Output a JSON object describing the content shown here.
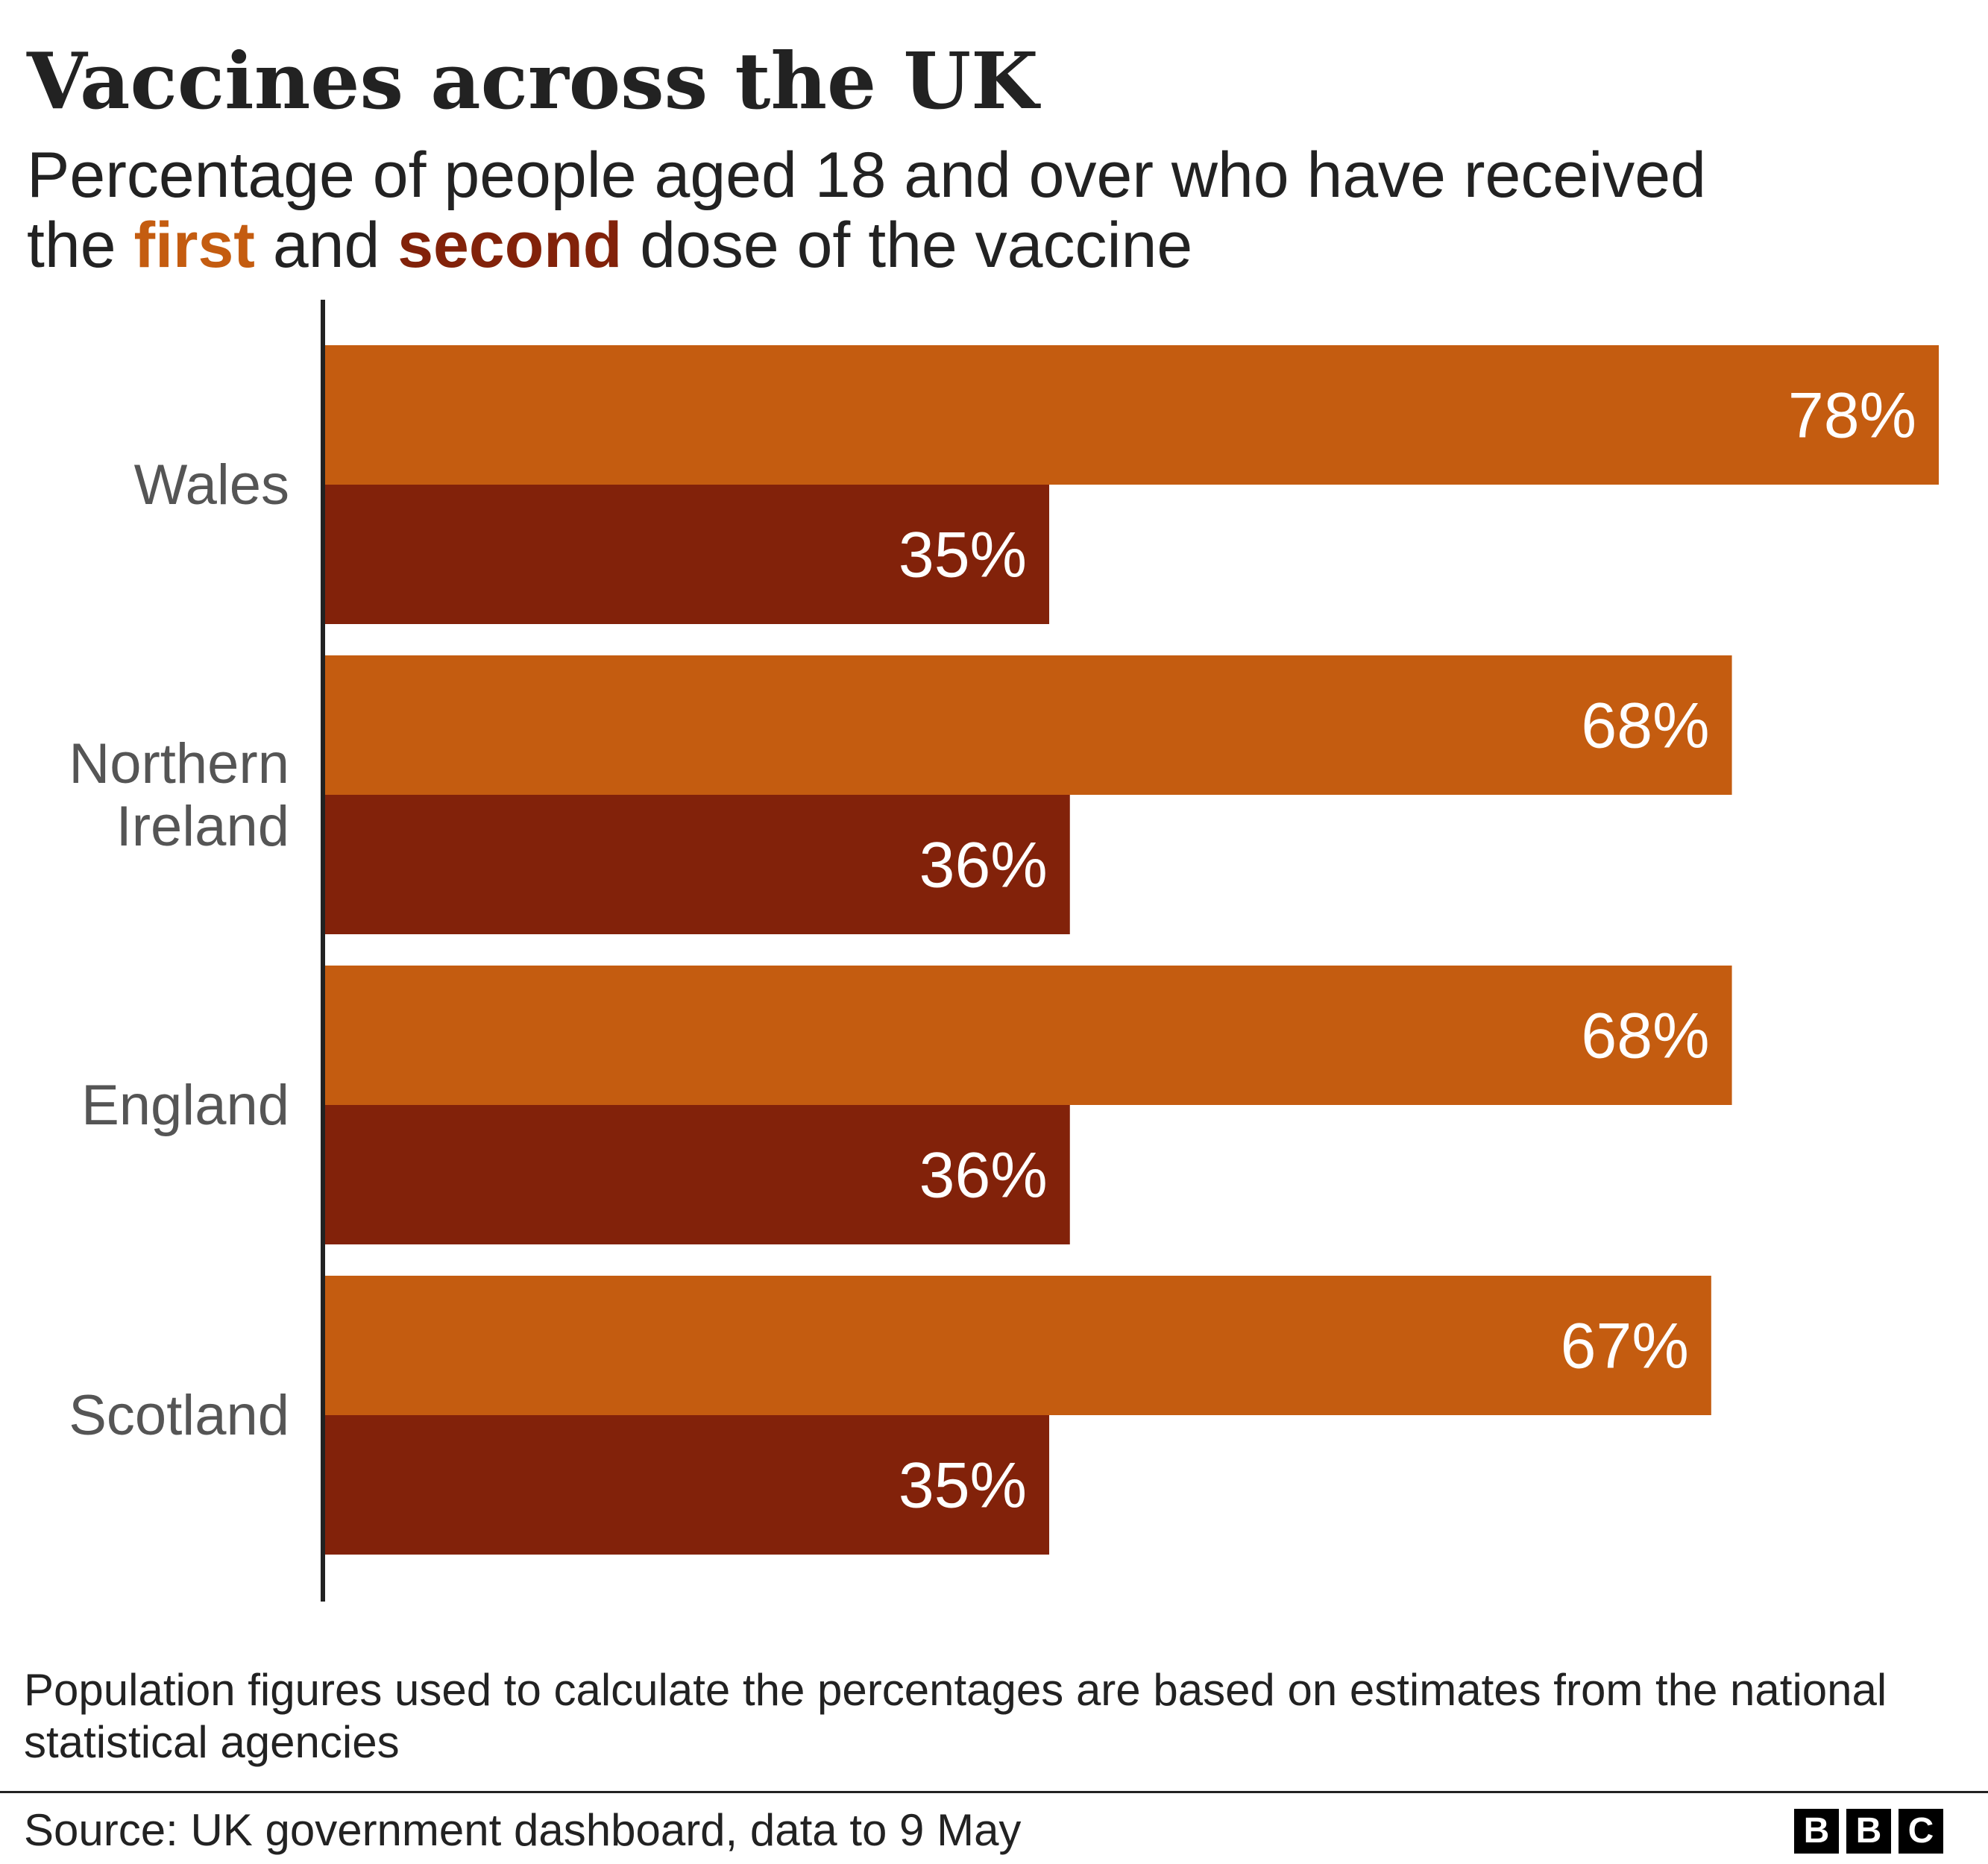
{
  "title": "Vaccines across the UK",
  "subtitle": {
    "line1": "Percentage of people aged 18 and over who have received",
    "pre": "the ",
    "first": "first",
    "mid": " and ",
    "second": "second",
    "post": " dose of the vaccine"
  },
  "colors": {
    "first": "#c45c10",
    "second": "#82220a",
    "axis": "#222222",
    "category_label": "#555555",
    "value_label": "#ffffff"
  },
  "chart_data": {
    "type": "bar",
    "orientation": "horizontal",
    "categories": [
      "Wales",
      "Northern Ireland",
      "England",
      "Scotland"
    ],
    "category_lines": [
      [
        "Wales"
      ],
      [
        "Northern",
        "Ireland"
      ],
      [
        "England"
      ],
      [
        "Scotland"
      ]
    ],
    "series": [
      {
        "name": "first",
        "values": [
          78,
          68,
          68,
          67
        ]
      },
      {
        "name": "second",
        "values": [
          35,
          36,
          36,
          35
        ]
      }
    ],
    "value_labels": [
      [
        "78%",
        "35%"
      ],
      [
        "68%",
        "36%"
      ],
      [
        "68%",
        "36%"
      ],
      [
        "67%",
        "35%"
      ]
    ],
    "xlim": [
      0,
      78
    ],
    "grid": false,
    "legend": "none"
  },
  "note": "Population figures used to calculate the percentages are based on estimates from the national statistical agencies",
  "source": "Source: UK government dashboard, data to 9 May",
  "logo": {
    "letters": [
      "B",
      "B",
      "C"
    ]
  }
}
